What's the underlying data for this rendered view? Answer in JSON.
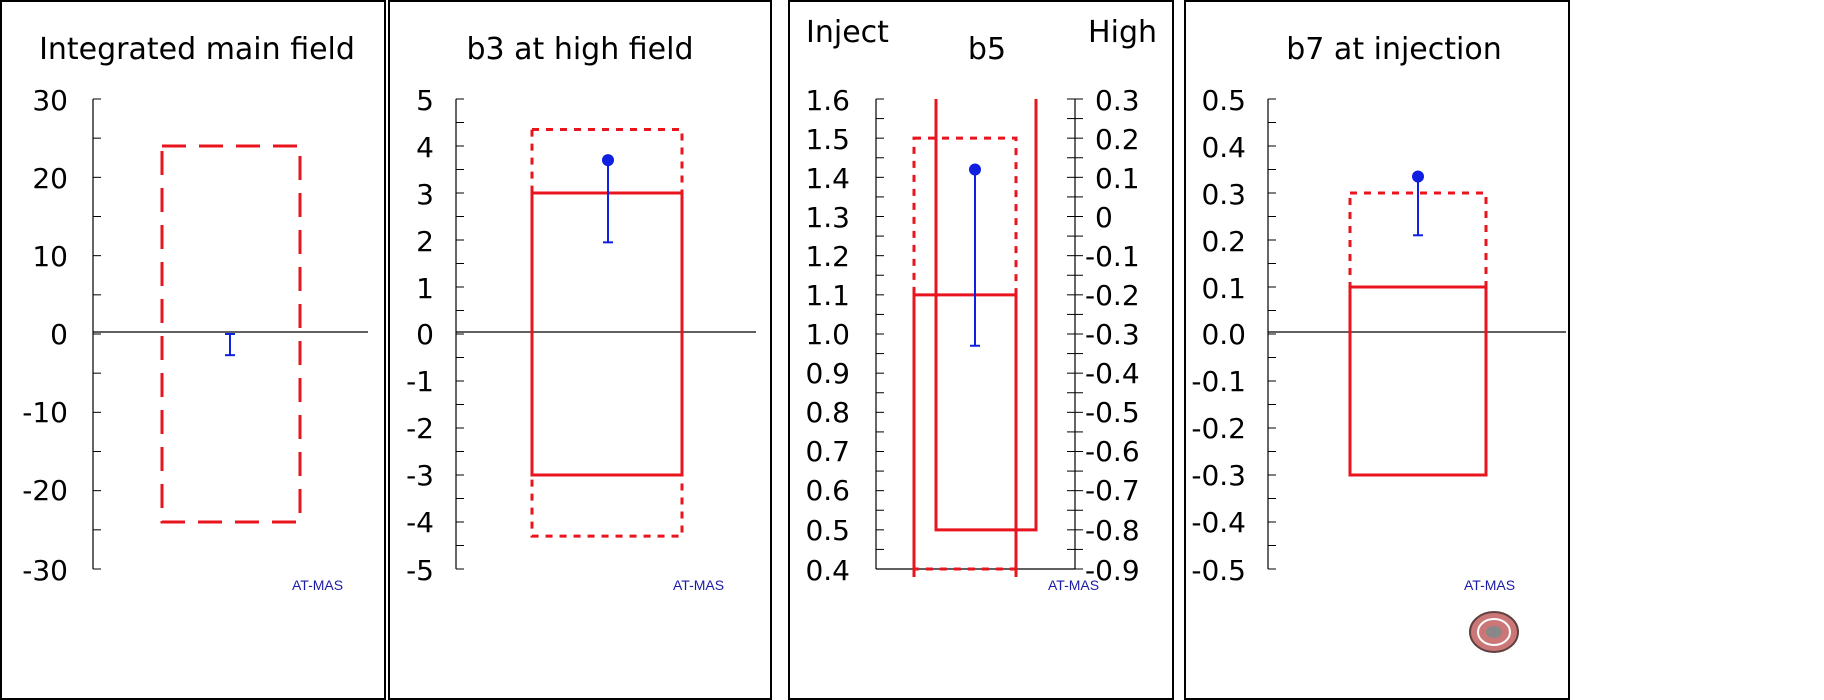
{
  "watermark": "AT-MAS",
  "colors": {
    "tolerance": "#e8141e",
    "measurement": "#1020e0",
    "axis": "#000000"
  },
  "chart_data": [
    {
      "type": "errorbar",
      "title": "Integrated main field",
      "ylim": [
        -30,
        30
      ],
      "yticks": [
        "30",
        "20",
        "10",
        "0",
        "-10",
        "-20",
        "-30"
      ],
      "tolerance_boxes": [
        {
          "style": "dashed",
          "range": [
            -24,
            24
          ]
        }
      ],
      "measurement": {
        "marker": false,
        "top": 0,
        "bottom": -2.7
      }
    },
    {
      "type": "errorbar",
      "title": "b3 at high field",
      "ylim": [
        -5,
        5
      ],
      "yticks": [
        "5",
        "4",
        "3",
        "2",
        "1",
        "0",
        "-1",
        "-2",
        "-3",
        "-4",
        "-5"
      ],
      "tolerance_boxes": [
        {
          "style": "dotted",
          "range": [
            -4.3,
            4.35
          ]
        },
        {
          "style": "solid",
          "range": [
            -3,
            3
          ]
        }
      ],
      "measurement": {
        "marker": true,
        "value": 3.7,
        "top": 3.7,
        "bottom": 1.95
      }
    },
    {
      "type": "errorbar",
      "title": "b5",
      "left_axis_label": "Inject",
      "right_axis_label": "High",
      "ylim": [
        0.4,
        1.6
      ],
      "y2lim": [
        -0.9,
        0.3
      ],
      "yticks": [
        "1.6",
        "1.5",
        "1.4",
        "1.3",
        "1.2",
        "1.1",
        "1.0",
        "0.9",
        "0.8",
        "0.7",
        "0.6",
        "0.5",
        "0.4"
      ],
      "y2ticks": [
        "0.3",
        "0.2",
        "0.1",
        "0",
        "-0.1",
        "-0.2",
        "-0.3",
        "-0.4",
        "-0.5",
        "-0.6",
        "-0.7",
        "-0.8",
        "-0.9"
      ],
      "tolerance_boxes": [
        {
          "style": "dotted",
          "axis": "left",
          "range": [
            0.4,
            1.5
          ]
        },
        {
          "style": "solid",
          "axis": "left",
          "range": [
            0.4,
            1.1
          ]
        },
        {
          "style": "solid",
          "axis": "right",
          "range": [
            -0.8,
            0.3
          ]
        }
      ],
      "measurement": {
        "marker": true,
        "value": 1.42,
        "top": 1.42,
        "bottom": 0.97
      }
    },
    {
      "type": "errorbar",
      "title": "b7 at injection",
      "ylim": [
        -0.5,
        0.5
      ],
      "yticks": [
        "0.5",
        "0.4",
        "0.3",
        "0.2",
        "0.1",
        "0.0",
        "-0.1",
        "-0.2",
        "-0.3",
        "-0.4",
        "-0.5"
      ],
      "tolerance_boxes": [
        {
          "style": "dotted",
          "range": [
            0.1,
            0.3
          ]
        },
        {
          "style": "solid",
          "range": [
            -0.3,
            0.1
          ]
        }
      ],
      "measurement": {
        "marker": true,
        "value": 0.335,
        "top": 0.335,
        "bottom": 0.21
      }
    }
  ]
}
